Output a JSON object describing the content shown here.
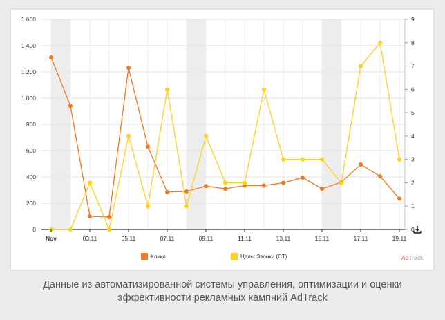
{
  "chart_data": {
    "type": "line",
    "x": [
      "Nov",
      "02.11",
      "03.11",
      "04.11",
      "05.11",
      "06.11",
      "07.11",
      "08.11",
      "09.11",
      "10.11",
      "11.11",
      "12.11",
      "13.11",
      "14.11",
      "15.11",
      "16.11",
      "17.11",
      "18.11",
      "19.11"
    ],
    "x_tick_labels": [
      "Nov",
      "03.11",
      "05.11",
      "07.11",
      "09.11",
      "11.11",
      "13.11",
      "15.11",
      "17.11",
      "19.11"
    ],
    "weekend_bands": [
      [
        "Nov",
        "02.11"
      ],
      [
        "08.11",
        "09.11"
      ],
      [
        "15.11",
        "16.11"
      ]
    ],
    "y_left": {
      "ticks": [
        "0",
        "200",
        "400",
        "600",
        "800",
        "1 000",
        "1 200",
        "1 400",
        "1 600"
      ],
      "ylim": [
        0,
        1600
      ]
    },
    "y_right": {
      "ticks": [
        "0",
        "1",
        "2",
        "3",
        "4",
        "5",
        "6",
        "7",
        "8",
        "9"
      ],
      "ylim": [
        0,
        9
      ]
    },
    "series": [
      {
        "name": "Клики",
        "axis": "left",
        "color": "#f07a1f",
        "values": [
          1310,
          940,
          100,
          95,
          1230,
          630,
          285,
          290,
          330,
          310,
          335,
          335,
          355,
          395,
          310,
          360,
          495,
          405,
          235
        ]
      },
      {
        "name": "Цель: Звонки (CT)",
        "axis": "right",
        "color": "#ffd11a",
        "values": [
          0,
          0,
          2,
          0,
          4,
          1,
          6,
          1,
          4,
          2,
          2,
          6,
          3,
          3,
          3,
          2,
          7,
          8,
          3
        ]
      }
    ],
    "grid": true,
    "legend_position": "bottom"
  },
  "brand": {
    "prefix": "Ad",
    "suffix": "Track"
  },
  "caption": {
    "line1": "Данные из автоматизированной системы управления, оптимизации и оценки",
    "line2": "эффективности рекламных кампний AdTrack"
  },
  "icons": {
    "download": "download-icon"
  }
}
